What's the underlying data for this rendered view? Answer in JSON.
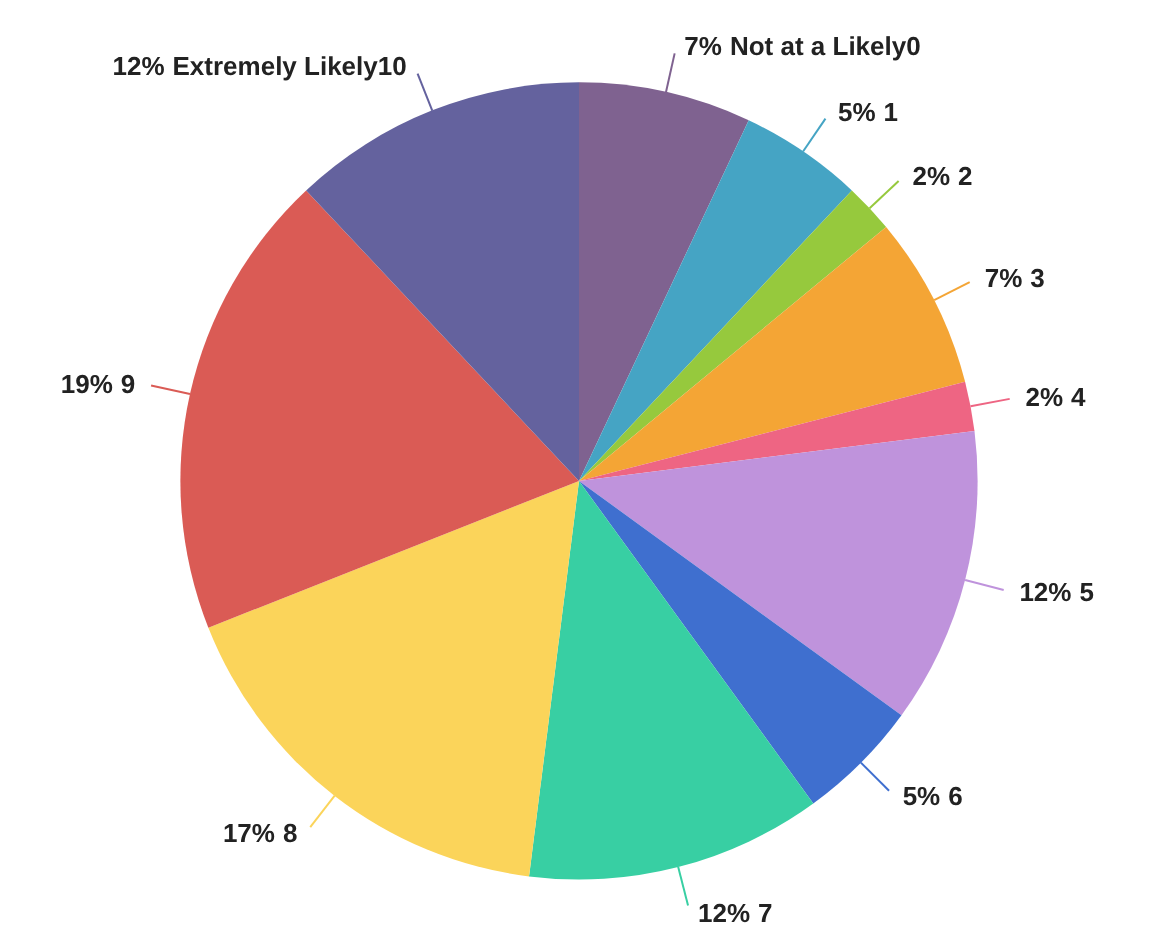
{
  "chart_data": {
    "type": "pie",
    "categories": [
      "Not at a Likely0",
      "1",
      "2",
      "3",
      "4",
      "5",
      "6",
      "7",
      "8",
      "9",
      "Extremely Likely10"
    ],
    "values": [
      7,
      5,
      2,
      7,
      2,
      12,
      5,
      12,
      17,
      19,
      12
    ],
    "colors": [
      "#7f6290",
      "#45a4c4",
      "#96c93d",
      "#f4a535",
      "#ee6583",
      "#bf93dc",
      "#3f6fcf",
      "#38cfa3",
      "#fbd45a",
      "#da5b55",
      "#64629e"
    ],
    "value_labels": [
      "7%",
      "5%",
      "2%",
      "7%",
      "2%",
      "12%",
      "5%",
      "12%",
      "17%",
      "19%",
      "12%"
    ]
  }
}
